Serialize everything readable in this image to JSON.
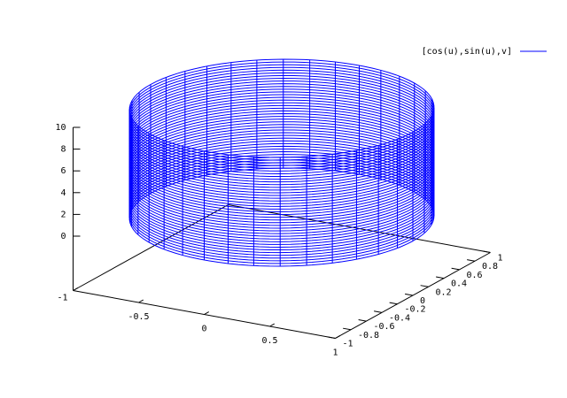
{
  "chart_data": {
    "type": "surface3d",
    "series": [
      {
        "name": "[cos(u),sin(u),v]",
        "color": "#0000ff"
      }
    ],
    "xlim": [
      -1,
      1
    ],
    "ylim": [
      -1,
      1
    ],
    "zlim": [
      0,
      10
    ],
    "xticks": [
      -1,
      -0.5,
      0,
      0.5,
      1
    ],
    "yticks": [
      -1,
      -0.8,
      -0.6,
      -0.4,
      -0.2,
      0,
      0.2,
      0.4,
      0.6,
      0.8,
      1
    ],
    "zticks": [
      0,
      2,
      4,
      6,
      8,
      10
    ]
  }
}
